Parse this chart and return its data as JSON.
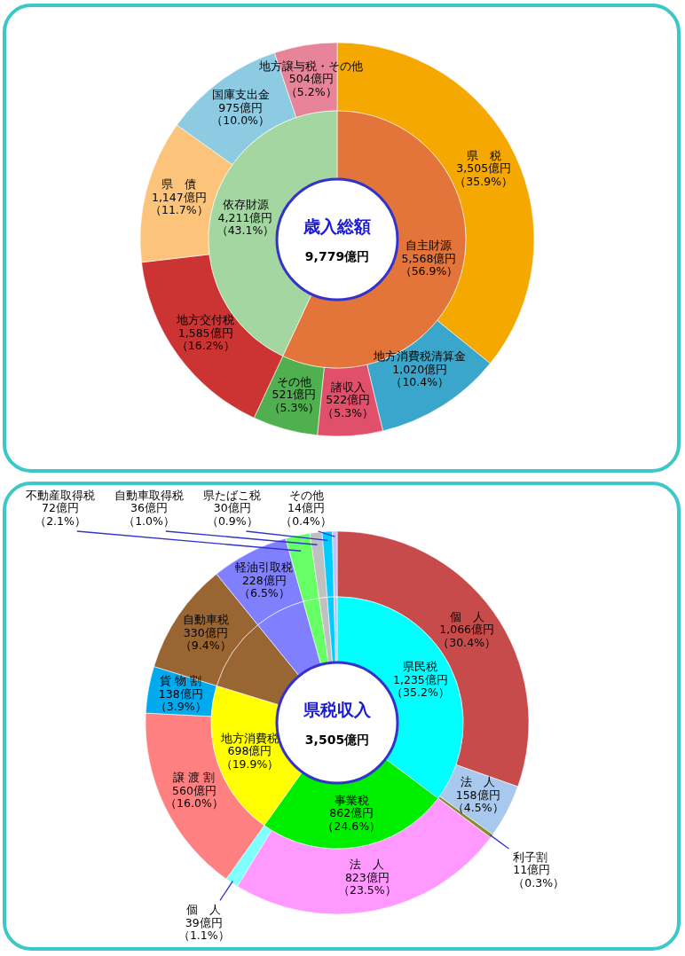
{
  "chart_data": [
    {
      "type": "donut",
      "title": "歳入総額",
      "subtitle": "9,779億円",
      "categories": [
        null,
        null,
        "県　税",
        "地方消費税清算金",
        "諸収入",
        "その他",
        "地方交付税",
        "県　債",
        "国庫支出金",
        "地方譲与税・その他"
      ],
      "colors": [
        "#e3743a",
        "#a3d6a0",
        "#f5a800",
        "#3aa6cc",
        "#e0506a",
        "#50b050",
        "#cc3333",
        "#fcc47a",
        "#8ccbe2",
        "#e8849a"
      ],
      "series": [
        {
          "values": [
            null,
            null,
            3505,
            1020,
            522,
            521,
            1585,
            1147,
            975,
            504
          ],
          "value_labels": [
            null,
            null,
            "3,505億円（35.9%）",
            "1,020億円（10.4%）",
            "522億円（5.3%）",
            "521億円（5.3%）",
            "1,585億円（16.2%）",
            "1,147億円（11.7%）",
            "975億円（10.0%）",
            "504億円（5.2%）"
          ]
        },
        {
          "values": [
            5568,
            4211,
            null,
            null,
            null,
            null,
            null,
            null,
            null,
            null
          ],
          "value_labels": [
            "自主財源5,568億円（56.9%）",
            "依存財源4,211億円（43.1%）",
            null,
            null,
            null,
            null,
            null,
            null,
            null,
            null
          ]
        }
      ]
    },
    {
      "type": "donut",
      "title": "県税収入",
      "subtitle": "3,505億円",
      "categories": [
        null,
        null,
        null,
        "個　人",
        "法　人",
        "利子割",
        "法　人",
        "個　人",
        "譲 渡 割",
        "貨 物 割",
        "自動車税",
        "軽油引取税",
        "不動産取得税",
        "自動車取得税",
        "県たばこ税",
        "その他"
      ],
      "colors": [
        "#00ffff",
        "#00ee00",
        "#ffff00",
        "#c84b4b",
        "#a9c8ee",
        "#8b8b2e",
        "#ff99ff",
        "#80ffff",
        "#ff8080",
        "#00aaee",
        "#996633",
        "#8080ff",
        "#66ff66",
        "#c0c0c0",
        "#00ccff",
        "#c0c0ff"
      ],
      "series": [
        {
          "values": [
            null,
            null,
            null,
            1066,
            158,
            11,
            823,
            39,
            560,
            138,
            330,
            228,
            72,
            36,
            30,
            14
          ],
          "value_labels": [
            null,
            null,
            null,
            "1,066億円（30.4%）",
            "158億円（4.5%）",
            "11億円（0.3%）",
            "823億円（23.5%）",
            "39億円（1.1%）",
            "560億円（16.0%）",
            "138億円（3.9%）",
            "330億円（9.4%）",
            "228億円（6.5%）",
            "72億円（2.1%）",
            "36億円（1.0%）",
            "30億円（0.9%）",
            "14億円（0.4%）"
          ]
        },
        {
          "values": [
            1235,
            862,
            698,
            null,
            null,
            null,
            null,
            null,
            null,
            null,
            330,
            228,
            72,
            36,
            30,
            14
          ],
          "value_labels": [
            "県民税1,235億円（35.2%）",
            "事業税862億円（24.6%）",
            "地方消費税698億円（19.9%）",
            null,
            null,
            null,
            null,
            null,
            null,
            null,
            null,
            null,
            null,
            null,
            null,
            null
          ]
        }
      ]
    }
  ]
}
